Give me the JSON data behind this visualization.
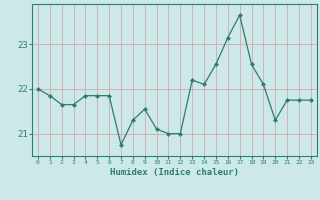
{
  "x": [
    0,
    1,
    2,
    3,
    4,
    5,
    6,
    7,
    8,
    9,
    10,
    11,
    12,
    13,
    14,
    15,
    16,
    17,
    18,
    19,
    20,
    21,
    22,
    23
  ],
  "y": [
    22.0,
    21.85,
    21.65,
    21.65,
    21.85,
    21.85,
    21.85,
    20.75,
    21.3,
    21.55,
    21.1,
    21.0,
    21.0,
    22.2,
    22.1,
    22.55,
    23.15,
    23.65,
    22.55,
    22.1,
    21.3,
    21.75,
    21.75,
    21.75
  ],
  "line_color": "#2e7d6e",
  "marker": "D",
  "marker_size": 2.0,
  "bg_color": "#cce8e8",
  "grid_color": "#d4a8a8",
  "axis_label_color": "#2e7d6e",
  "tick_color": "#2e7d6e",
  "xlabel": "Humidex (Indice chaleur)",
  "ylabel": "",
  "ylim": [
    20.5,
    23.9
  ],
  "yticks": [
    21,
    22,
    23
  ],
  "xlim": [
    -0.5,
    23.5
  ]
}
